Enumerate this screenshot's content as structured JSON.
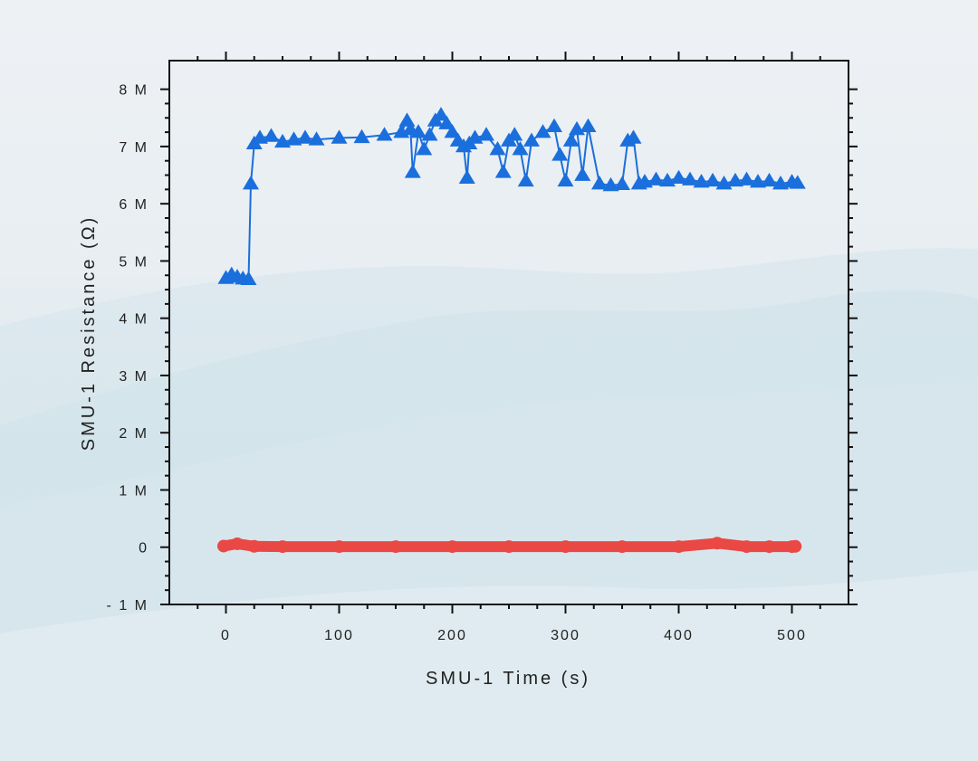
{
  "chart_data": {
    "type": "scatter",
    "xlabel": "SMU-1 Time (s)",
    "ylabel": "SMU-1 Resistance (Ω)",
    "xlim": [
      -50,
      550
    ],
    "ylim": [
      -1000000,
      8500000
    ],
    "xticks": [
      {
        "value": 0,
        "label": "0"
      },
      {
        "value": 100,
        "label": "100"
      },
      {
        "value": 200,
        "label": "200"
      },
      {
        "value": 300,
        "label": "300"
      },
      {
        "value": 400,
        "label": "400"
      },
      {
        "value": 500,
        "label": "500"
      }
    ],
    "yticks": [
      {
        "value": -1000000,
        "label": "- 1 M"
      },
      {
        "value": 0,
        "label": "0"
      },
      {
        "value": 1000000,
        "label": "1 M"
      },
      {
        "value": 2000000,
        "label": "2 M"
      },
      {
        "value": 3000000,
        "label": "3 M"
      },
      {
        "value": 4000000,
        "label": "4 M"
      },
      {
        "value": 5000000,
        "label": "5 M"
      },
      {
        "value": 6000000,
        "label": "6 M"
      },
      {
        "value": 7000000,
        "label": "7 M"
      },
      {
        "value": 8000000,
        "label": "8 M"
      }
    ],
    "grid": false,
    "legend": "none",
    "series": [
      {
        "color": "#1a6fdc",
        "marker": "triangle",
        "x": [
          0,
          5,
          10,
          15,
          20,
          22,
          25,
          30,
          40,
          50,
          60,
          70,
          80,
          100,
          120,
          140,
          155,
          160,
          163,
          165,
          170,
          175,
          180,
          185,
          190,
          195,
          200,
          205,
          210,
          213,
          215,
          220,
          230,
          240,
          245,
          250,
          255,
          260,
          265,
          270,
          280,
          290,
          295,
          300,
          305,
          310,
          315,
          320,
          330,
          340,
          350,
          355,
          360,
          365,
          370,
          380,
          390,
          400,
          410,
          420,
          430,
          440,
          450,
          460,
          470,
          480,
          490,
          500,
          505
        ],
        "y": [
          4700000,
          4760000,
          4720000,
          4690000,
          4680000,
          6350000,
          7050000,
          7150000,
          7180000,
          7080000,
          7120000,
          7150000,
          7120000,
          7150000,
          7160000,
          7200000,
          7250000,
          7450000,
          7300000,
          6550000,
          7250000,
          6950000,
          7200000,
          7450000,
          7550000,
          7400000,
          7250000,
          7100000,
          7000000,
          6450000,
          7050000,
          7150000,
          7200000,
          6950000,
          6550000,
          7100000,
          7200000,
          6950000,
          6400000,
          7100000,
          7250000,
          7350000,
          6850000,
          6400000,
          7100000,
          7300000,
          6500000,
          7350000,
          6350000,
          6320000,
          6340000,
          7100000,
          7150000,
          6350000,
          6380000,
          6420000,
          6400000,
          6450000,
          6420000,
          6380000,
          6400000,
          6350000,
          6400000,
          6420000,
          6380000,
          6400000,
          6350000,
          6380000,
          6360000
        ]
      },
      {
        "color": "#ea4845",
        "marker": "circle",
        "x": [
          -2,
          10,
          25,
          50,
          100,
          150,
          200,
          250,
          300,
          350,
          400,
          434,
          460,
          480,
          500,
          503
        ],
        "y": [
          20000,
          60000,
          15000,
          10000,
          10000,
          10000,
          10000,
          10000,
          10000,
          10000,
          10000,
          70000,
          10000,
          10000,
          10000,
          15000
        ]
      }
    ]
  }
}
